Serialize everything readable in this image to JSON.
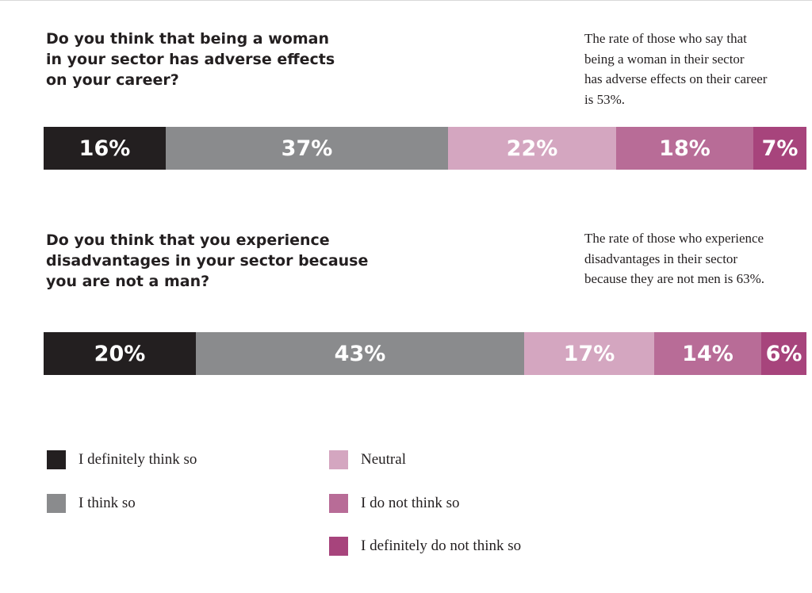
{
  "colors": {
    "definitely_yes": "#231f20",
    "yes": "#8a8b8d",
    "neutral": "#d4a6c0",
    "no": "#b86c97",
    "definitely_no": "#a7447c"
  },
  "chart_data": [
    {
      "type": "bar",
      "stacked": true,
      "orientation": "horizontal",
      "title": "Do you think that being a woman\nin your sector has adverse effects\non your career?",
      "annotation": "The rate of those who say that\nbeing a woman in their sector\nhas adverse effects on their career\nis 53%.",
      "categories": [
        "I definitely think so",
        "I think so",
        "Neutral",
        "I do not think so",
        "I definitely do not think so"
      ],
      "values": [
        16,
        37,
        22,
        18,
        7
      ],
      "labels": [
        "16%",
        "37%",
        "22%",
        "18%",
        "7%"
      ]
    },
    {
      "type": "bar",
      "stacked": true,
      "orientation": "horizontal",
      "title": "Do you think that you experience\ndisadvantages in your sector because\nyou are not a man?",
      "annotation": "The rate of those who experience\ndisadvantages in their sector\nbecause they are not men is 63%.",
      "categories": [
        "I definitely think so",
        "I think so",
        "Neutral",
        "I do not think so",
        "I definitely do not think so"
      ],
      "values": [
        20,
        43,
        17,
        14,
        6
      ],
      "labels": [
        "20%",
        "43%",
        "17%",
        "14%",
        "6%"
      ]
    }
  ],
  "legend": [
    {
      "label": "I definitely think so",
      "color": "#231f20"
    },
    {
      "label": "I think so",
      "color": "#8a8b8d"
    },
    {
      "label": "Neutral",
      "color": "#d4a6c0"
    },
    {
      "label": "I do not think so",
      "color": "#b86c97"
    },
    {
      "label": "I definitely do not think so",
      "color": "#a7447c"
    }
  ]
}
